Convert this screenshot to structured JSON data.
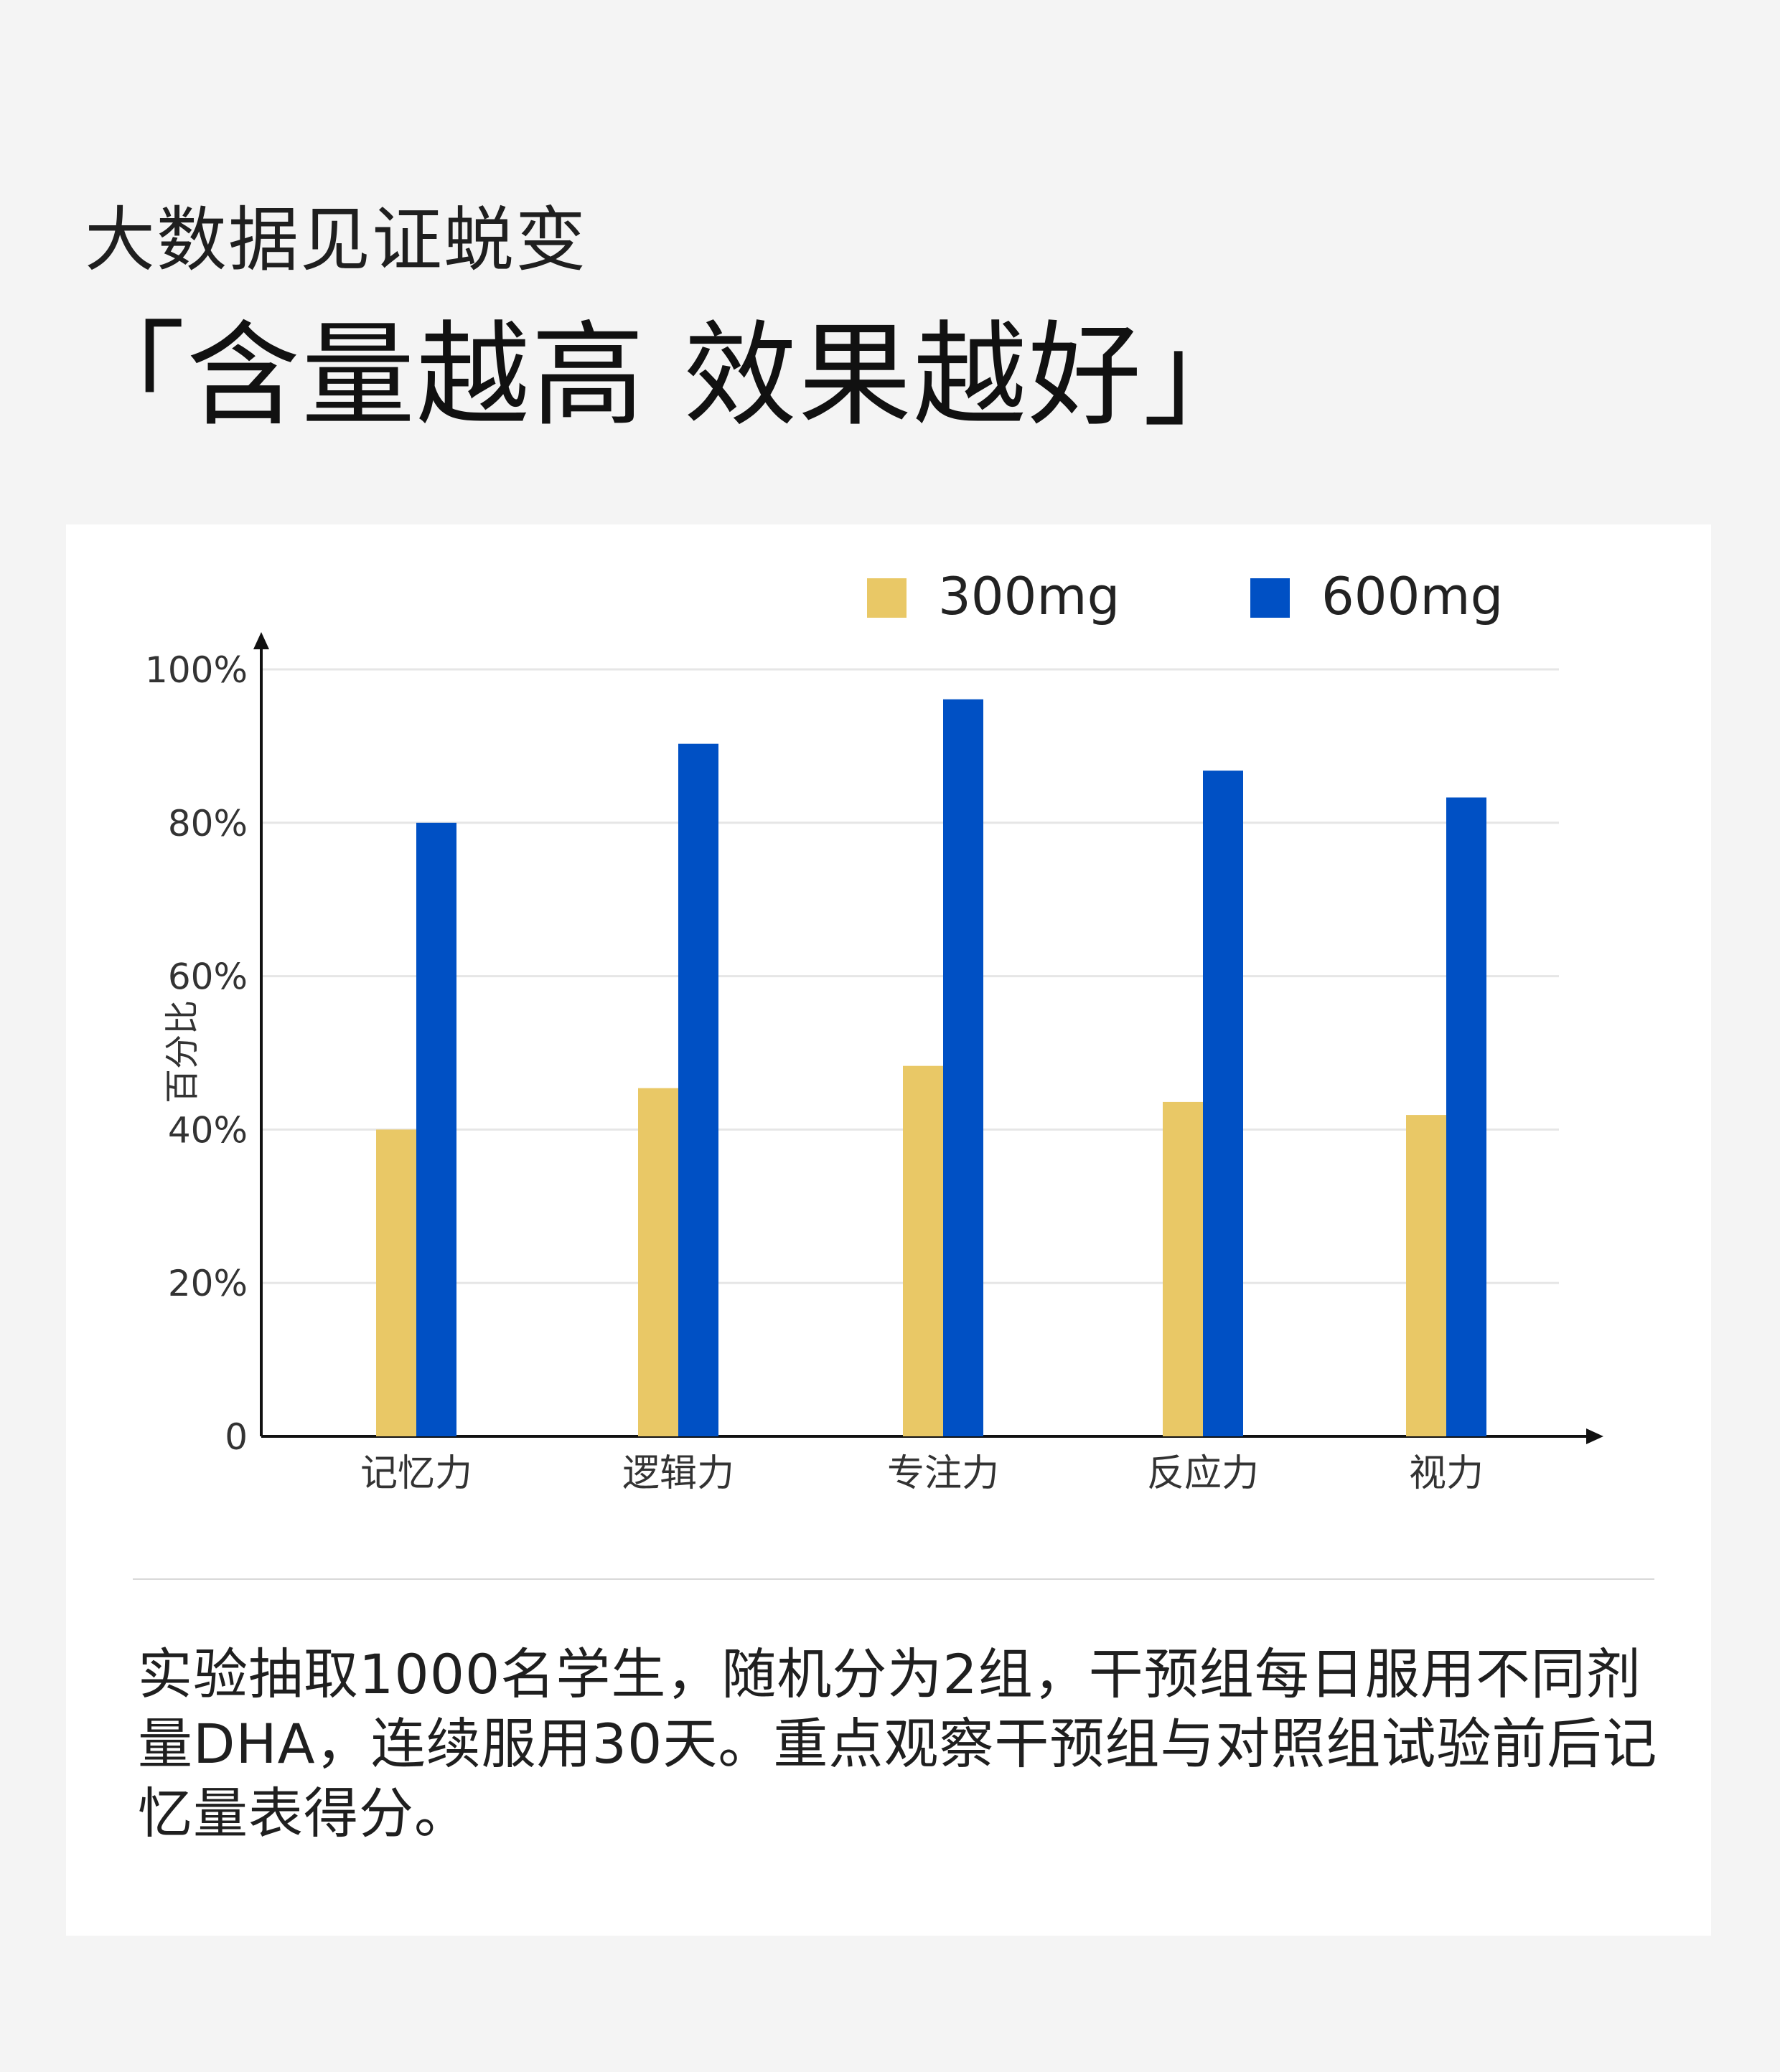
{
  "header": {
    "subtitle": "大数据见证蜕变",
    "title": "「含量越高 效果越好」"
  },
  "chart_data": {
    "type": "bar",
    "categories": [
      "记忆力",
      "逻辑力",
      "专注力",
      "反应力",
      "视力"
    ],
    "series": [
      {
        "name": "300mg",
        "color": "#e9c866",
        "values": [
          40,
          45.4,
          48.3,
          43.6,
          41.9
        ]
      },
      {
        "name": "600mg",
        "color": "#0050c4",
        "values": [
          80,
          90.3,
          96.1,
          86.8,
          83.3
        ]
      }
    ],
    "xlabel": "",
    "ylabel": "百分比",
    "ylim": [
      0,
      100
    ],
    "yticks": [
      {
        "value": 0,
        "label": "0"
      },
      {
        "value": 20,
        "label": "20%"
      },
      {
        "value": 40,
        "label": "40%"
      },
      {
        "value": 60,
        "label": "60%"
      },
      {
        "value": 80,
        "label": "80%"
      },
      {
        "value": 100,
        "label": "100%"
      }
    ],
    "grid": true,
    "legend_position": "top-right"
  },
  "description": "实验抽取1000名学生，随机分为2组，干预组每日服用不同剂量DHA，连续服用30天。重点观察干预组与对照组试验前后记忆量表得分。"
}
